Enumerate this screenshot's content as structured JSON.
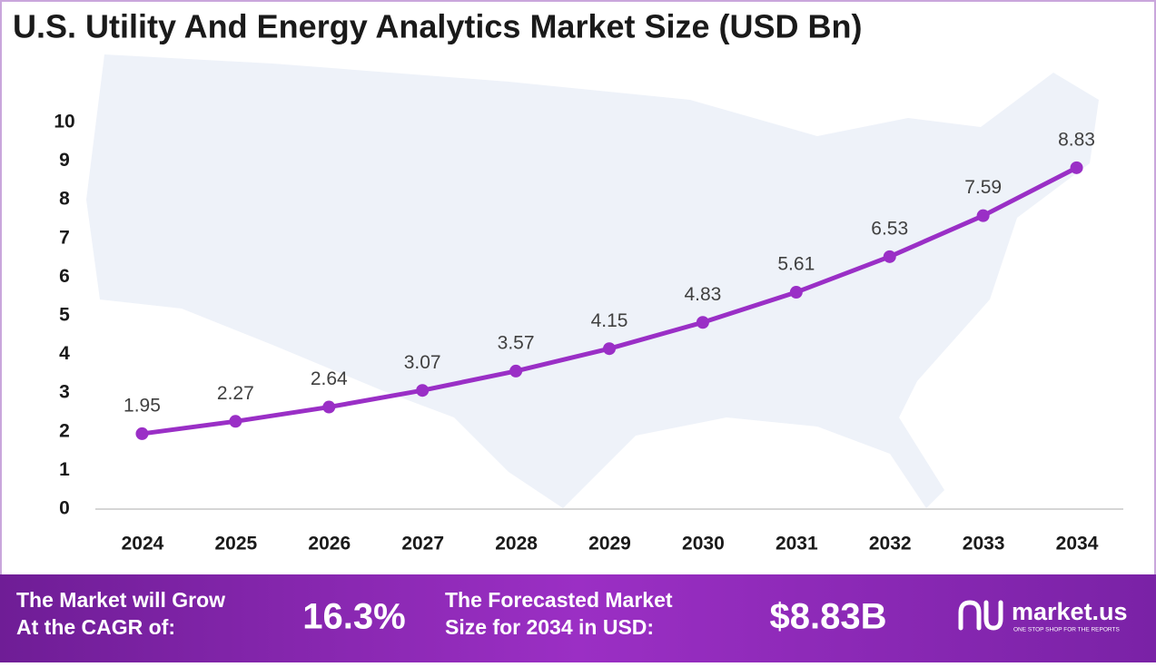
{
  "chart_data": {
    "type": "line",
    "title": "U.S. Utility And Energy Analytics Market Size (USD Bn)",
    "categories": [
      "2024",
      "2025",
      "2026",
      "2027",
      "2028",
      "2029",
      "2030",
      "2031",
      "2032",
      "2033",
      "2034"
    ],
    "values": [
      1.95,
      2.27,
      2.64,
      3.07,
      3.57,
      4.15,
      4.83,
      5.61,
      6.53,
      7.59,
      8.83
    ],
    "color": "#9a2fc6",
    "ylim": [
      0,
      10
    ],
    "yticks": [
      0,
      1,
      2,
      3,
      4,
      5,
      6,
      7,
      8,
      9,
      10
    ],
    "grid": false
  },
  "footer": {
    "cagr_text_1": "The Market will Grow",
    "cagr_text_2": "At the CAGR of:",
    "cagr_value": "16.3%",
    "forecast_text_1": "The Forecasted Market",
    "forecast_text_2": "Size for 2034 in USD:",
    "forecast_value": "$8.83B",
    "brand": "market.us",
    "tagline": "ONE STOP SHOP FOR THE REPORTS"
  }
}
